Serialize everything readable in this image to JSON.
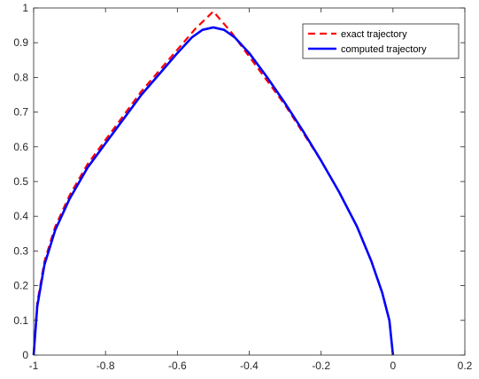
{
  "chart_data": {
    "type": "line",
    "title": "",
    "xlabel": "",
    "ylabel": "",
    "xlim": [
      -1,
      0.2
    ],
    "ylim": [
      0,
      1
    ],
    "x_ticks": [
      -1,
      -0.8,
      -0.6,
      -0.4,
      -0.2,
      0,
      0.2
    ],
    "x_tick_labels": [
      "-1",
      "-0.8",
      "-0.6",
      "-0.4",
      "-0.2",
      "0",
      "0.2"
    ],
    "y_ticks": [
      0,
      0.1,
      0.2,
      0.3,
      0.4,
      0.5,
      0.6,
      0.7,
      0.8,
      0.9,
      1
    ],
    "y_tick_labels": [
      "0",
      "0.1",
      "0.2",
      "0.3",
      "0.4",
      "0.5",
      "0.6",
      "0.7",
      "0.8",
      "0.9",
      "1"
    ],
    "grid": false,
    "legend_position": "top-right",
    "series": [
      {
        "name": "exact trajectory",
        "color": "#ff0000",
        "line_style": "dashed",
        "x": [
          -1.0,
          -0.99,
          -0.97,
          -0.94,
          -0.9,
          -0.85,
          -0.8,
          -0.75,
          -0.7,
          -0.65,
          -0.6,
          -0.55,
          -0.5,
          -0.45,
          -0.4,
          -0.35,
          -0.3,
          -0.25,
          -0.2,
          -0.15,
          -0.1,
          -0.06,
          -0.03,
          -0.01,
          0.0
        ],
        "y": [
          0.0,
          0.15,
          0.27,
          0.37,
          0.46,
          0.55,
          0.62,
          0.69,
          0.76,
          0.82,
          0.88,
          0.94,
          0.99,
          0.93,
          0.86,
          0.79,
          0.72,
          0.64,
          0.56,
          0.47,
          0.37,
          0.27,
          0.18,
          0.1,
          0.0
        ]
      },
      {
        "name": "computed trajectory",
        "color": "#0000ff",
        "line_style": "solid",
        "x": [
          -1.0,
          -0.99,
          -0.97,
          -0.94,
          -0.9,
          -0.85,
          -0.8,
          -0.75,
          -0.7,
          -0.65,
          -0.6,
          -0.56,
          -0.53,
          -0.5,
          -0.47,
          -0.44,
          -0.4,
          -0.35,
          -0.3,
          -0.25,
          -0.2,
          -0.15,
          -0.1,
          -0.06,
          -0.03,
          -0.01,
          0.0
        ],
        "y": [
          0.0,
          0.14,
          0.26,
          0.36,
          0.45,
          0.54,
          0.61,
          0.68,
          0.75,
          0.81,
          0.87,
          0.915,
          0.937,
          0.944,
          0.937,
          0.915,
          0.87,
          0.8,
          0.725,
          0.645,
          0.56,
          0.47,
          0.37,
          0.27,
          0.18,
          0.1,
          0.0
        ]
      }
    ]
  }
}
